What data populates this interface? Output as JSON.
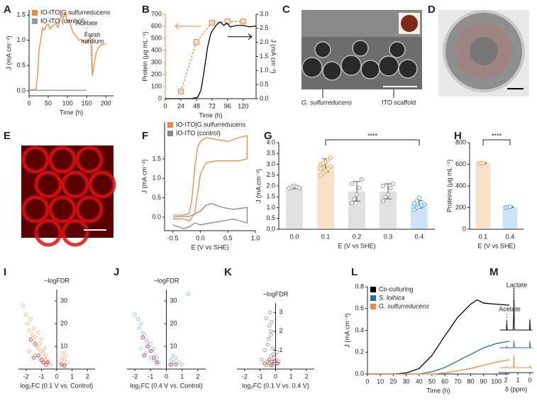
{
  "chart_data": [
    {
      "type": "line",
      "panel": "A",
      "ylabel": "J (mA cm⁻²)",
      "xlabel": "Time (h)",
      "xlim": [
        0,
        220
      ],
      "xticks": [
        0,
        50,
        100,
        150,
        200
      ],
      "ylim": [
        -0.1,
        1.6
      ],
      "yticks": [
        {
          "value": 0,
          "label": "0.0"
        },
        0.5,
        {
          "value": 1,
          "label": "1.0"
        },
        1.5
      ],
      "legend": "upper left",
      "annotations": [
        "Acetate",
        "Fresh",
        "medium"
      ],
      "series": [
        {
          "name": "IO-ITO|G.sulfurreducens",
          "color": "#f0883e",
          "x": [
            0,
            10,
            18,
            22,
            26,
            30,
            35,
            40,
            45,
            50,
            55,
            60,
            65,
            70,
            75,
            80,
            85,
            90,
            95,
            100,
            105,
            110,
            115,
            120,
            125,
            130,
            135,
            140,
            145,
            150,
            155,
            160,
            165,
            170,
            175,
            180,
            185,
            190,
            195,
            200
          ],
          "values": [
            0.02,
            0.02,
            0.03,
            0.3,
            0.8,
            1.0,
            1.25,
            1.2,
            1.3,
            1.32,
            1.22,
            1.28,
            1.3,
            1.35,
            1.25,
            1.4,
            1.5,
            1.45,
            1.55,
            1.35,
            1.4,
            1.25,
            1.15,
            1.1,
            1.05,
            1.0,
            1.02,
            0.98,
            0.95,
            0.95,
            1.0,
            1.1,
            0.3,
            0.55,
            0.75,
            0.85,
            0.88,
            0.92,
            0.92,
            0.93
          ]
        },
        {
          "name": "IO-ITO (control)",
          "color": "#999999",
          "x": [
            0,
            150
          ],
          "values": [
            0.01,
            0.01
          ]
        }
      ]
    },
    {
      "type": "line",
      "panel": "B",
      "ylabel": "Protein (μg mL⁻¹)",
      "y2label": "J (mA cm⁻²)",
      "xlabel": "Time (h)",
      "y_axis_color": "#f0883e",
      "xlim": [
        0,
        140
      ],
      "xticks": [
        0,
        24,
        48,
        72,
        96,
        120
      ],
      "ylim": [
        0,
        700
      ],
      "yticks": [
        0,
        100,
        200,
        300,
        400,
        500,
        600,
        700
      ],
      "y2lim": [
        0,
        3
      ],
      "y2ticks": [
        {
          "value": 0,
          "label": "0.0"
        },
        0.5,
        {
          "value": 1,
          "label": "1.0"
        },
        1.5,
        {
          "value": 2,
          "label": "2.0"
        },
        2.5,
        {
          "value": 3,
          "label": "3.0"
        }
      ],
      "series": [
        {
          "color": "#f0883e",
          "dashed": true,
          "marker": "square",
          "x": [
            24,
            48,
            72,
            96,
            120
          ],
          "values": [
            60,
            470,
            630,
            640,
            640
          ]
        },
        {
          "color": "#000000",
          "axis": "y2",
          "x": [
            0,
            40,
            50,
            55,
            60,
            65,
            70,
            75,
            80,
            85,
            90,
            95,
            100,
            110,
            120,
            130,
            140
          ],
          "values": [
            0,
            0,
            0.05,
            0.3,
            1.0,
            1.8,
            2.3,
            2.5,
            2.65,
            2.72,
            2.6,
            2.68,
            2.55,
            2.6,
            2.6,
            2.55,
            2.58
          ]
        }
      ]
    },
    {
      "type": "line",
      "panel": "F",
      "ylabel": "J (mA cm⁻²)",
      "xlabel": "E (V vs SHE)",
      "xlim": [
        -0.65,
        1.0
      ],
      "xticks": [
        -0.5,
        {
          "value": 0,
          "label": "0.0"
        },
        0.5,
        {
          "value": 1,
          "label": "1.0"
        }
      ],
      "ylim": [
        -0.35,
        2.45
      ],
      "yticks": [
        {
          "value": 0,
          "label": "0.0"
        },
        0.5,
        {
          "value": 1,
          "label": "1.0"
        },
        1.5
      ],
      "legend": "upper left",
      "series": [
        {
          "name": "IO-ITO|G.sulfurreducens",
          "color": "#f0883e",
          "x": [
            -0.5,
            -0.3,
            -0.2,
            -0.15,
            -0.1,
            -0.05,
            0,
            0.1,
            0.3,
            0.5,
            0.7,
            0.85,
            0.85,
            0.7,
            0.5,
            0.3,
            0.1,
            0.0,
            -0.05,
            -0.1,
            -0.2,
            -0.3,
            -0.5
          ],
          "values": [
            0.05,
            0.05,
            0.1,
            0.5,
            1.3,
            1.8,
            1.95,
            2.05,
            2.0,
            1.95,
            2.05,
            2.1,
            1.5,
            1.45,
            1.45,
            1.45,
            1.4,
            1.1,
            0.6,
            0.1,
            -0.1,
            -0.05,
            -0.05
          ]
        },
        {
          "name": "IO-ITO (control)",
          "color": "#888888",
          "x": [
            -0.5,
            -0.2,
            0,
            0.1,
            0.2,
            0.4,
            0.6,
            0.85,
            0.85,
            0.6,
            0.4,
            0.2,
            0,
            -0.1,
            -0.2,
            -0.3,
            -0.5
          ],
          "values": [
            0,
            0.02,
            0.15,
            0.3,
            0.35,
            0.25,
            0.2,
            0.25,
            -0.15,
            -0.05,
            -0.1,
            -0.15,
            -0.2,
            -0.15,
            -0.25,
            -0.3,
            -0.2
          ]
        }
      ]
    },
    {
      "type": "bar",
      "panel": "G",
      "ylabel": "J (mA cm⁻²)",
      "xlabel": "E (V vs SHE)",
      "categories": [
        "0.0",
        "0.1",
        "0.2",
        "0.3",
        "0.4"
      ],
      "values": [
        1.95,
        2.95,
        1.75,
        1.75,
        1.15
      ],
      "errors": [
        0.08,
        0.3,
        0.45,
        0.35,
        0.17
      ],
      "colors": [
        "#9a9a9a",
        "#f0a050",
        "#9a9a9a",
        "#9a9a9a",
        "#5aa7e0"
      ],
      "points": [
        [
          1.9,
          1.95,
          2.0,
          1.95,
          1.9
        ],
        [
          2.5,
          2.6,
          2.7,
          2.8,
          2.9,
          3.0,
          3.0,
          3.1,
          3.2,
          3.3,
          2.8,
          3.05
        ],
        [
          1.2,
          1.4,
          1.6,
          1.9,
          2.3,
          2.1
        ],
        [
          1.3,
          1.5,
          1.6,
          1.9,
          2.1,
          2.0
        ],
        [
          0.9,
          1.0,
          1.05,
          1.1,
          1.15,
          1.2,
          1.3,
          1.45,
          1.1
        ]
      ],
      "ylim": [
        0,
        4
      ],
      "yticks": [
        {
          "value": 0,
          "label": "0.0"
        },
        0.5,
        {
          "value": 1,
          "label": "1.0"
        },
        1.5,
        {
          "value": 2,
          "label": "2.0"
        },
        2.5,
        {
          "value": 3,
          "label": "3.0"
        },
        3.5,
        {
          "value": 4,
          "label": "4.0"
        }
      ],
      "annotations": [
        "****"
      ]
    },
    {
      "type": "bar",
      "panel": "H",
      "ylabel": "Proteins (μg mL⁻¹)",
      "xlabel": "E (V vs SHE)",
      "categories": [
        "0.1",
        "0.4"
      ],
      "values": [
        610,
        205
      ],
      "errors": [
        5,
        6
      ],
      "colors": [
        "#f0a050",
        "#5aa7e0"
      ],
      "points": [
        [
          605,
          610,
          612
        ],
        [
          200,
          205,
          208
        ]
      ],
      "ylim": [
        0,
        800
      ],
      "yticks": [
        0,
        200,
        400,
        600,
        800
      ],
      "annotations": [
        "****"
      ]
    },
    {
      "type": "scatter",
      "panel": "I",
      "ylabel": "−logFDR",
      "xlabel": "log₂FC (0.1 V vs. Control)",
      "xlim": [
        -2.5,
        2.5
      ],
      "xticks": [
        -2,
        -1,
        0,
        1,
        2
      ],
      "ylim": [
        0,
        35
      ],
      "yticks": [
        10,
        20,
        30
      ],
      "series": [
        {
          "color": "#f3b27a",
          "x": [
            -2.2,
            -2.0,
            -1.9,
            -1.8,
            -1.7,
            -1.6,
            -1.5,
            -1.5,
            -1.4,
            -1.3,
            -1.2,
            -1.2,
            -1.1,
            -1.0,
            -1.0,
            -0.9,
            -0.8,
            -0.8,
            -0.7,
            -0.6,
            -0.5,
            -0.4,
            -1.8,
            -1.4,
            -1.1,
            -0.7,
            0.2,
            0.3,
            0.4,
            0.5,
            0.6,
            0.7,
            0.3,
            0.5
          ],
          "values": [
            28,
            24,
            20,
            17,
            22,
            15,
            18,
            12,
            14,
            10,
            16,
            9,
            11,
            8,
            13,
            7,
            9,
            5,
            6,
            4,
            3,
            2,
            8,
            6,
            5,
            3,
            3,
            5,
            7,
            4,
            6,
            3,
            2,
            2
          ]
        },
        {
          "color": "#d9304a",
          "x": [
            -1.7,
            -1.4,
            -1.2,
            -1.0,
            -0.9,
            -0.7,
            -0.6,
            -1.5,
            0.3,
            0.5
          ],
          "values": [
            13,
            11,
            6,
            4,
            3,
            2,
            3,
            5,
            2,
            1.5
          ]
        }
      ]
    },
    {
      "type": "scatter",
      "panel": "J",
      "ylabel": "−logFDR",
      "xlabel": "log₂FC (0.4 V vs. Control)",
      "xlim": [
        -2.5,
        2.5
      ],
      "xticks": [
        -2,
        -1,
        0,
        1,
        2
      ],
      "ylim": [
        0,
        35
      ],
      "yticks": [
        10,
        20,
        30
      ],
      "series": [
        {
          "color": "#8ec2ea",
          "x": [
            -2.0,
            -1.8,
            -1.7,
            -1.6,
            -1.5,
            -1.4,
            -1.3,
            -1.2,
            -1.1,
            -1.0,
            -0.9,
            -0.8,
            -0.7,
            -0.6,
            -0.5,
            -1.6,
            -1.3,
            -1.0,
            -0.8,
            -0.6,
            0.2,
            0.3,
            0.4,
            0.5,
            0.6,
            0.8,
            1.0,
            1.4
          ],
          "values": [
            24,
            22,
            18,
            20,
            16,
            15,
            13,
            12,
            10,
            11,
            8,
            9,
            6,
            5,
            3,
            9,
            7,
            5,
            4,
            2,
            2,
            4,
            6,
            3,
            5,
            3,
            2,
            33
          ]
        },
        {
          "color": "#d9304a",
          "x": [
            -1.5,
            -1.2,
            -1.0,
            -0.8,
            -0.6,
            -1.4,
            0.3,
            0.6
          ],
          "values": [
            14,
            10,
            8,
            5,
            3,
            6,
            2,
            2
          ]
        }
      ]
    },
    {
      "type": "scatter",
      "panel": "K",
      "ylabel": "−logFDR",
      "xlabel": "log₂FC (0.1 V vs. 0.4 V)",
      "xlim": [
        -2.5,
        2.5
      ],
      "xticks": [
        -2,
        -1,
        0,
        1,
        2
      ],
      "ylim": [
        0,
        3.5
      ],
      "yticks": [
        1,
        2,
        3
      ],
      "series": [
        {
          "color": "#9a9a9a",
          "x": [
            -0.9,
            -0.7,
            -0.6,
            -0.5,
            -0.4,
            -0.35,
            -0.3,
            -0.25,
            -0.2,
            -0.15,
            -0.1,
            -0.5,
            -0.4,
            -0.3,
            -0.2,
            0.05,
            0.1,
            0.15,
            0.2,
            -0.6,
            -0.45,
            -0.3,
            -0.2,
            -0.1
          ],
          "values": [
            0.5,
            1.0,
            2.7,
            1.3,
            2.3,
            3.0,
            1.8,
            2.5,
            1.1,
            0.8,
            0.6,
            0.4,
            0.3,
            0.7,
            0.4,
            0.5,
            0.9,
            0.3,
            0.4,
            0.2,
            1.6,
            2.0,
            0.2,
            0.3
          ]
        },
        {
          "color": "#d9304a",
          "x": [
            -0.7,
            -0.4,
            -0.3,
            -0.1,
            0.1
          ],
          "values": [
            0.3,
            0.5,
            0.2,
            0.4,
            0.3
          ]
        }
      ]
    },
    {
      "type": "line",
      "panel": "L",
      "ylabel": "J (mA cm⁻²)",
      "xlabel": "Time (h)",
      "xlim": [
        0,
        110
      ],
      "xticks": [
        0,
        10,
        20,
        30,
        40,
        50,
        60,
        70,
        80,
        90,
        100
      ],
      "ylim": [
        0,
        0.8
      ],
      "yticks": [
        {
          "value": 0,
          "label": "0.0"
        },
        0.2,
        0.4,
        0.6,
        0.8
      ],
      "legend": "upper left",
      "x": [
        0,
        10,
        20,
        30,
        40,
        50,
        60,
        70,
        80,
        85,
        90,
        100,
        110
      ],
      "series": [
        {
          "name": "Co-culturing",
          "color": "#000000",
          "values": [
            0,
            0,
            0,
            0.01,
            0.05,
            0.17,
            0.35,
            0.52,
            0.64,
            0.68,
            0.65,
            0.64,
            0.63
          ]
        },
        {
          "name": "S. loihica",
          "color": "#1f6fa8",
          "values": [
            0,
            0,
            0,
            0,
            0,
            0.02,
            0.06,
            0.12,
            0.18,
            0.21,
            0.24,
            0.28,
            0.3
          ]
        },
        {
          "name": "G. sulfurreducens",
          "color": "#f0883e",
          "values": [
            0,
            0,
            0,
            0,
            0,
            0,
            0.01,
            0.03,
            0.05,
            0.065,
            0.08,
            0.11,
            0.13
          ]
        }
      ]
    },
    {
      "type": "spectrum",
      "panel": "M",
      "xlabel": "δ (ppm)",
      "xlim": [
        2.6,
        -0.3
      ],
      "xticks": [
        2,
        1,
        0
      ],
      "annotations": [
        "Acetate",
        "Lactate"
      ],
      "x": [
        2.5,
        1.95,
        1.92,
        1.9,
        1.4,
        1.35,
        1.33,
        1.31,
        1.29,
        0.5,
        0.03,
        0,
        -0.03,
        -0.2
      ],
      "series": [
        {
          "color": "#000000",
          "values": [
            0,
            0,
            3,
            0,
            0,
            4,
            12,
            4,
            0,
            0,
            0,
            3,
            0,
            0
          ]
        },
        {
          "color": "#1f6fa8",
          "values": [
            0,
            0,
            0.5,
            0,
            0,
            0.5,
            2,
            0.5,
            0,
            0,
            0,
            2,
            0,
            0
          ]
        },
        {
          "color": "#f0883e",
          "values": [
            0,
            0,
            0.5,
            0,
            0,
            1,
            3.5,
            1,
            0,
            0,
            0,
            0.5,
            0,
            0
          ]
        }
      ]
    }
  ],
  "images": [
    {
      "panel": "C",
      "labels": [
        "G. sulfurreducens",
        "ITO scaffold"
      ]
    },
    {
      "panel": "D"
    },
    {
      "panel": "E"
    }
  ]
}
